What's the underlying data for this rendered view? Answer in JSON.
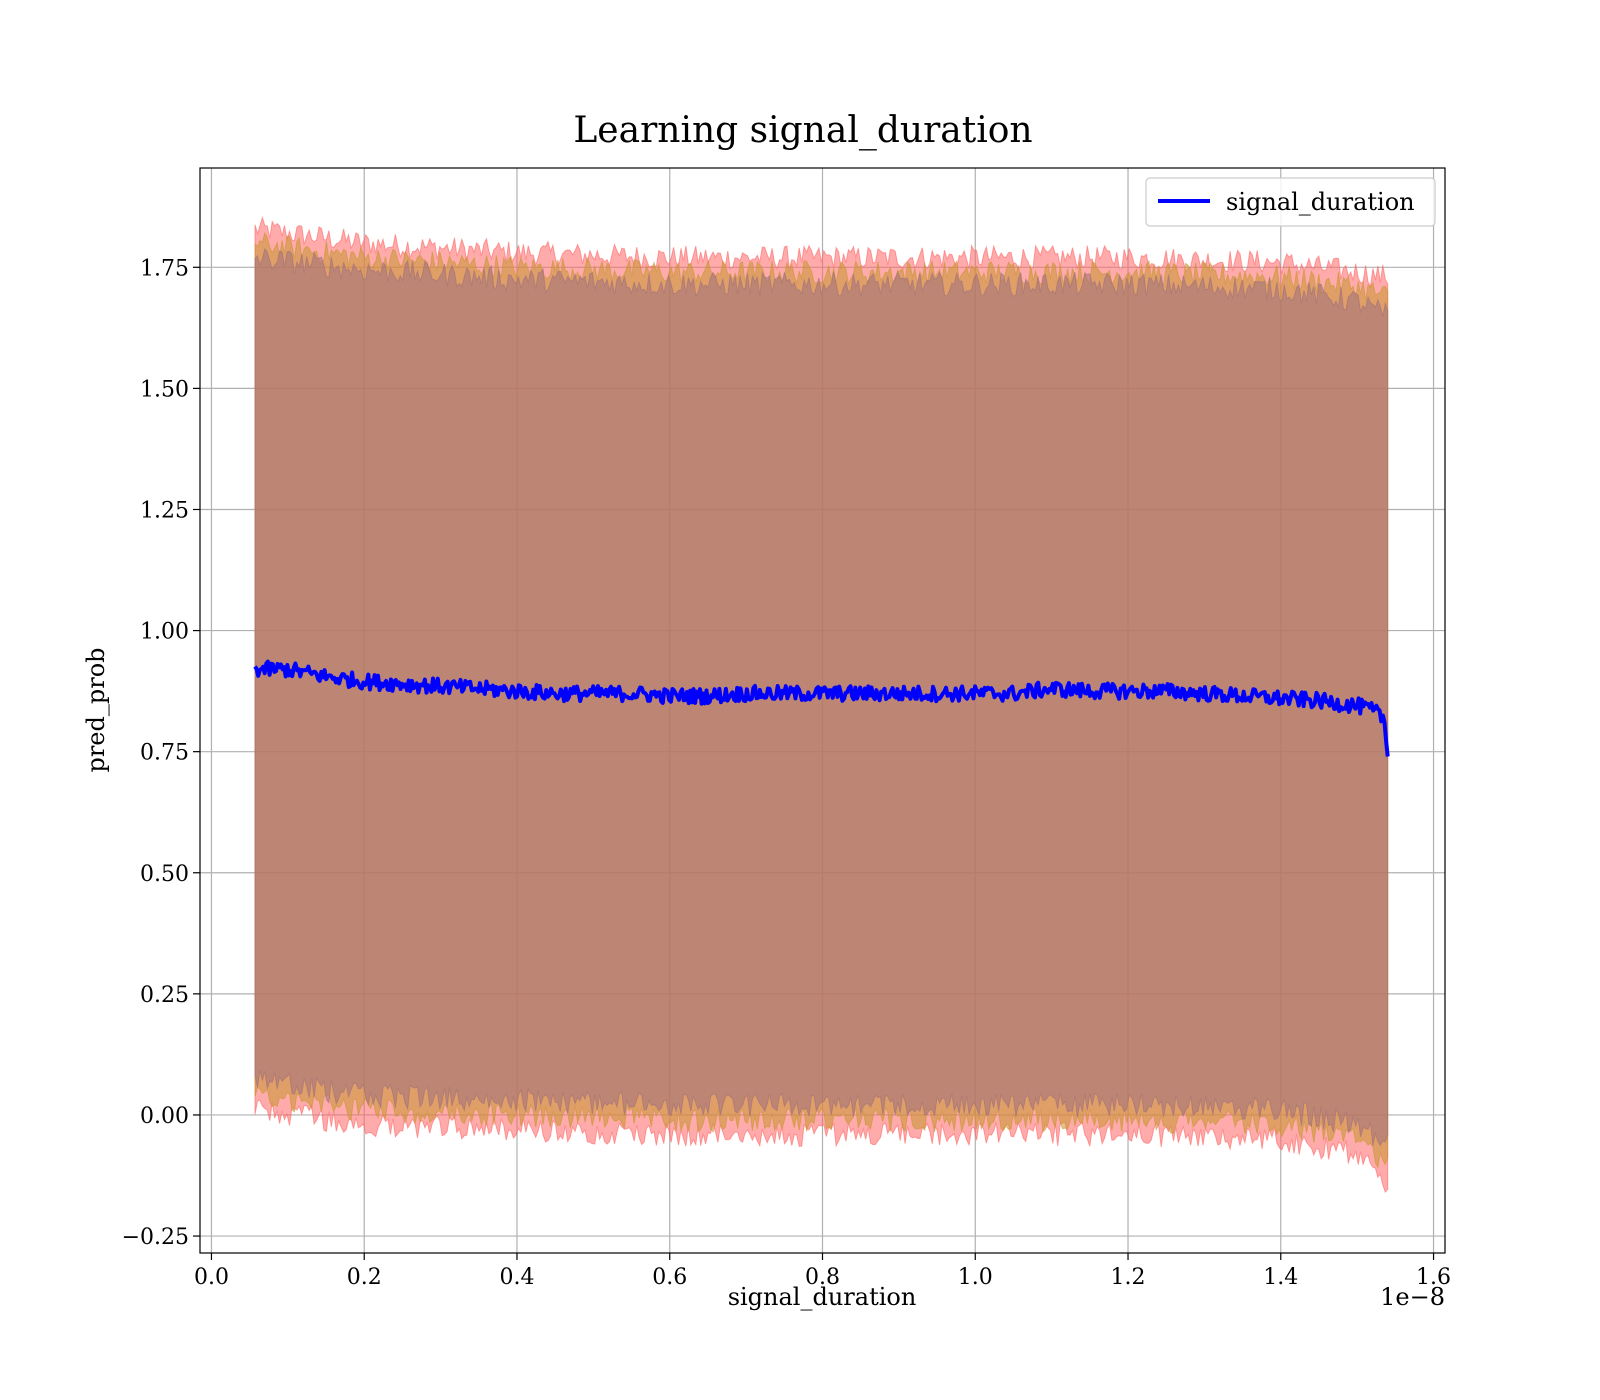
{
  "chart_data": {
    "type": "line",
    "title": "Learning signal_duration",
    "xlabel": "signal_duration",
    "ylabel": "pred_prob",
    "x_offset_label": "1e−8",
    "xlim": [
      -0.015,
      1.615
    ],
    "ylim": [
      -0.285,
      1.955
    ],
    "x_ticks": [
      0.0,
      0.2,
      0.4,
      0.6,
      0.8,
      1.0,
      1.2,
      1.4,
      1.6
    ],
    "x_tick_labels": [
      "0.0",
      "0.2",
      "0.4",
      "0.6",
      "0.8",
      "1.0",
      "1.2",
      "1.4",
      "1.6"
    ],
    "y_ticks": [
      -0.25,
      0.0,
      0.25,
      0.5,
      0.75,
      1.0,
      1.25,
      1.5,
      1.75
    ],
    "y_tick_labels": [
      "−0.25",
      "0.00",
      "0.25",
      "0.50",
      "0.75",
      "1.00",
      "1.25",
      "1.50",
      "1.75"
    ],
    "grid": true,
    "legend_position": "upper right",
    "series": [
      {
        "name": "signal_duration",
        "color": "#0000ff",
        "x": [
          0.057,
          0.1,
          0.15,
          0.2,
          0.25,
          0.3,
          0.35,
          0.4,
          0.45,
          0.5,
          0.55,
          0.6,
          0.65,
          0.7,
          0.75,
          0.8,
          0.85,
          0.9,
          0.95,
          1.0,
          1.05,
          1.1,
          1.15,
          1.2,
          1.25,
          1.3,
          1.35,
          1.4,
          1.45,
          1.5,
          1.52,
          1.535,
          1.54
        ],
        "y": [
          0.92,
          0.92,
          0.905,
          0.895,
          0.89,
          0.885,
          0.88,
          0.875,
          0.87,
          0.87,
          0.87,
          0.865,
          0.865,
          0.87,
          0.87,
          0.87,
          0.87,
          0.87,
          0.87,
          0.87,
          0.87,
          0.88,
          0.875,
          0.875,
          0.875,
          0.87,
          0.865,
          0.86,
          0.855,
          0.845,
          0.835,
          0.82,
          0.74
        ]
      }
    ],
    "bands": [
      {
        "role": "outer",
        "color": "#ff6666",
        "x": [
          0.057,
          0.2,
          0.4,
          0.6,
          0.8,
          1.0,
          1.2,
          1.4,
          1.5,
          1.54
        ],
        "upper": [
          1.83,
          1.8,
          1.78,
          1.77,
          1.77,
          1.77,
          1.77,
          1.76,
          1.74,
          1.73
        ],
        "lower": [
          0.01,
          -0.02,
          -0.03,
          -0.04,
          -0.04,
          -0.04,
          -0.04,
          -0.05,
          -0.08,
          -0.15
        ]
      },
      {
        "role": "middle",
        "color": "#c89632",
        "x": [
          0.057,
          0.2,
          0.4,
          0.6,
          0.8,
          1.0,
          1.2,
          1.4,
          1.5,
          1.54
        ],
        "upper": [
          1.8,
          1.77,
          1.75,
          1.74,
          1.74,
          1.74,
          1.74,
          1.73,
          1.71,
          1.69
        ],
        "lower": [
          0.04,
          0.01,
          0.0,
          -0.01,
          -0.01,
          -0.01,
          -0.01,
          -0.02,
          -0.05,
          -0.1
        ]
      },
      {
        "role": "inner",
        "color": "#a0707c",
        "x": [
          0.057,
          0.2,
          0.4,
          0.6,
          0.8,
          1.0,
          1.2,
          1.4,
          1.5,
          1.54
        ],
        "upper": [
          1.77,
          1.745,
          1.725,
          1.715,
          1.715,
          1.715,
          1.715,
          1.705,
          1.68,
          1.65
        ],
        "lower": [
          0.07,
          0.04,
          0.03,
          0.02,
          0.02,
          0.02,
          0.02,
          0.01,
          -0.02,
          -0.06
        ]
      }
    ]
  }
}
